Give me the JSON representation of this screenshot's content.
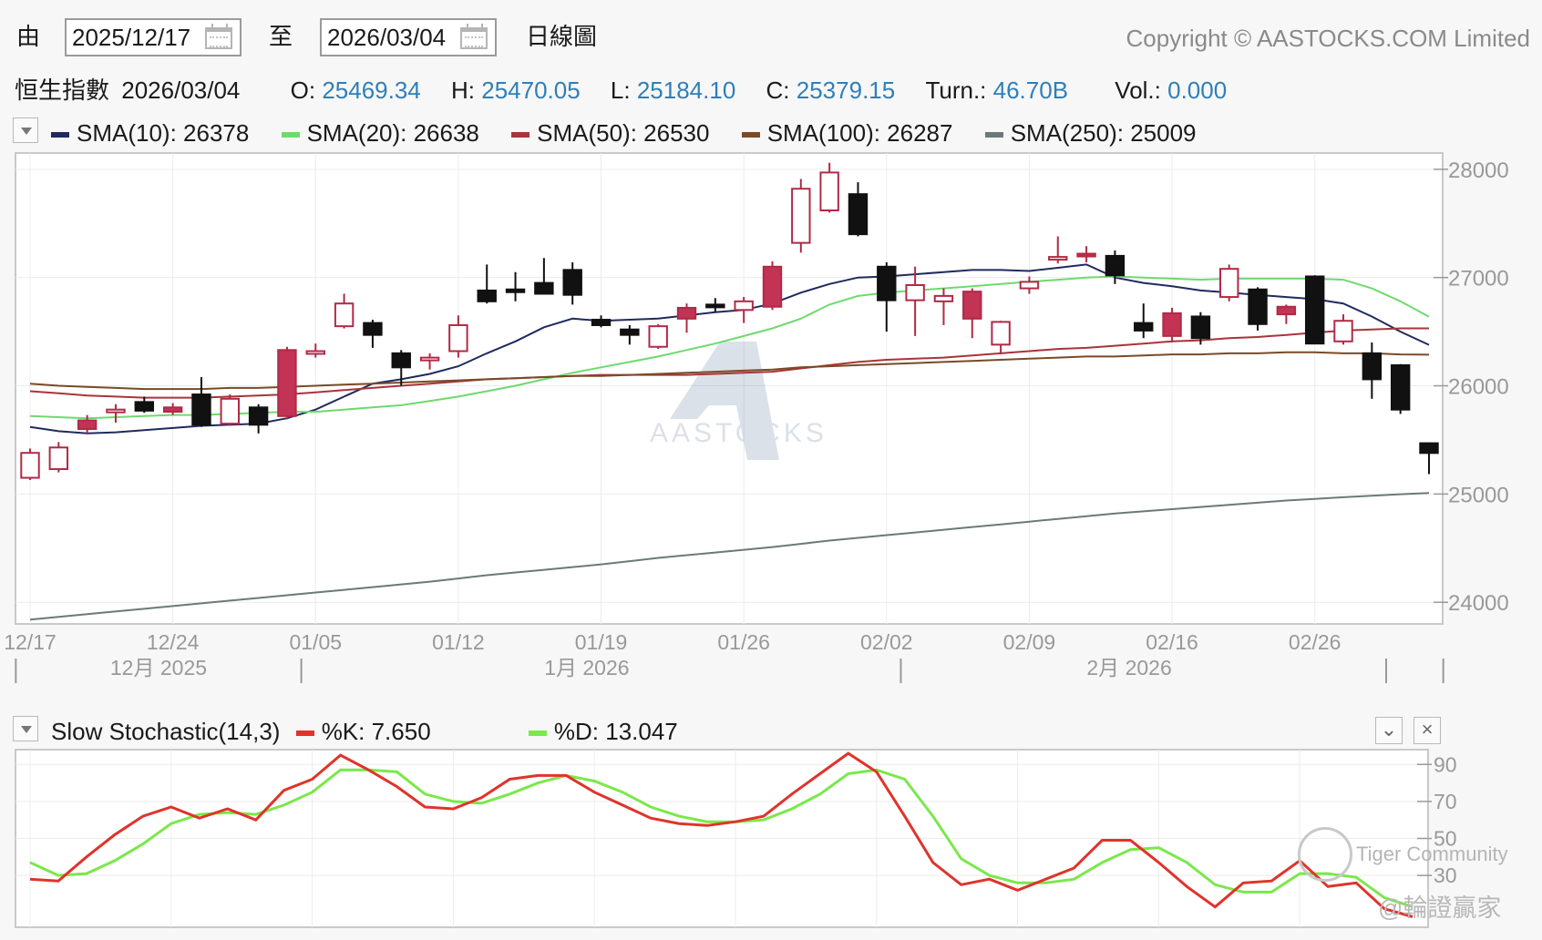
{
  "toolbar": {
    "from_label": "由",
    "from_date": "2025/12/17",
    "to_label": "至",
    "to_date": "2026/03/04",
    "period_label": "日線圖",
    "copyright": "Copyright © AASTOCKS.COM Limited"
  },
  "quote": {
    "name": "恒生指數",
    "date": "2026/03/04",
    "o_label": "O:",
    "o": "25469.34",
    "h_label": "H:",
    "h": "25470.05",
    "l_label": "L:",
    "l": "25184.10",
    "c_label": "C:",
    "c": "25379.15",
    "turn_label": "Turn.:",
    "turn": "46.70B",
    "vol_label": "Vol.:",
    "vol": "0.000"
  },
  "sma_legend": [
    {
      "label": "SMA(10): 26378",
      "color": "#1f2a5e"
    },
    {
      "label": "SMA(20): 26638",
      "color": "#6fd96f"
    },
    {
      "label": "SMA(50): 26530",
      "color": "#a8343b"
    },
    {
      "label": "SMA(100): 26287",
      "color": "#7a4a26"
    },
    {
      "label": "SMA(250): 25009",
      "color": "#6b7a78"
    }
  ],
  "stoch_legend": {
    "title": "Slow Stochastic(14,3)",
    "k_label": "%K: 7.650",
    "k_color": "#e0332b",
    "d_label": "%D: 13.047",
    "d_color": "#7ae84a"
  },
  "watermark": {
    "text": "AASTOCKS"
  },
  "footer_watermark": {
    "community": "Tiger Community",
    "handle": "@輪證贏家"
  },
  "chart_data": [
    {
      "type": "candlestick",
      "title": "恒生指數",
      "ylim": [
        23800,
        28150
      ],
      "yticks": [
        24000,
        25000,
        26000,
        27000,
        28000
      ],
      "x_ticks": [
        {
          "i": 0,
          "label": "12/17"
        },
        {
          "i": 5,
          "label": "12/24"
        },
        {
          "i": 10,
          "label": "01/05"
        },
        {
          "i": 15,
          "label": "01/12"
        },
        {
          "i": 20,
          "label": "01/19"
        },
        {
          "i": 25,
          "label": "01/26"
        },
        {
          "i": 30,
          "label": "02/02"
        },
        {
          "i": 35,
          "label": "02/09"
        },
        {
          "i": 40,
          "label": "02/16"
        },
        {
          "i": 45,
          "label": "02/26"
        }
      ],
      "month_labels": [
        {
          "center": 4.5,
          "label": "12月 2025"
        },
        {
          "center": 19.5,
          "label": "1月 2026"
        },
        {
          "center": 38.5,
          "label": "2月 2026"
        }
      ],
      "month_separators": [
        -0.5,
        9.5,
        30.5,
        47.5,
        49.5
      ],
      "candles": [
        {
          "o": 25150,
          "h": 25420,
          "l": 25130,
          "c": 25380
        },
        {
          "o": 25230,
          "h": 25480,
          "l": 25200,
          "c": 25430
        },
        {
          "o": 25600,
          "h": 25730,
          "l": 25560,
          "c": 25680
        },
        {
          "o": 25770,
          "h": 25830,
          "l": 25660,
          "c": 25780
        },
        {
          "o": 25850,
          "h": 25900,
          "l": 25750,
          "c": 25770
        },
        {
          "o": 25760,
          "h": 25840,
          "l": 25730,
          "c": 25800
        },
        {
          "o": 25920,
          "h": 26080,
          "l": 25620,
          "c": 25640
        },
        {
          "o": 25650,
          "h": 25920,
          "l": 25630,
          "c": 25880
        },
        {
          "o": 25800,
          "h": 25830,
          "l": 25560,
          "c": 25640
        },
        {
          "o": 25720,
          "h": 26360,
          "l": 25690,
          "c": 26330
        },
        {
          "o": 26300,
          "h": 26390,
          "l": 26260,
          "c": 26320
        },
        {
          "o": 26550,
          "h": 26850,
          "l": 26530,
          "c": 26760
        },
        {
          "o": 26580,
          "h": 26610,
          "l": 26350,
          "c": 26470
        },
        {
          "o": 26300,
          "h": 26330,
          "l": 26000,
          "c": 26170
        },
        {
          "o": 26250,
          "h": 26300,
          "l": 26150,
          "c": 26260
        },
        {
          "o": 26320,
          "h": 26650,
          "l": 26260,
          "c": 26560
        },
        {
          "o": 26880,
          "h": 27120,
          "l": 26760,
          "c": 26780
        },
        {
          "o": 26890,
          "h": 27050,
          "l": 26780,
          "c": 26880
        },
        {
          "o": 26950,
          "h": 27180,
          "l": 26850,
          "c": 26850
        },
        {
          "o": 27070,
          "h": 27140,
          "l": 26750,
          "c": 26840
        },
        {
          "o": 26610,
          "h": 26650,
          "l": 26540,
          "c": 26560
        },
        {
          "o": 26520,
          "h": 26560,
          "l": 26380,
          "c": 26470
        },
        {
          "o": 26360,
          "h": 26570,
          "l": 26340,
          "c": 26550
        },
        {
          "o": 26620,
          "h": 26760,
          "l": 26490,
          "c": 26720
        },
        {
          "o": 26750,
          "h": 26810,
          "l": 26680,
          "c": 26730
        },
        {
          "o": 26700,
          "h": 26820,
          "l": 26580,
          "c": 26780
        },
        {
          "o": 26730,
          "h": 27150,
          "l": 26700,
          "c": 27100
        },
        {
          "o": 27320,
          "h": 27910,
          "l": 27230,
          "c": 27820
        },
        {
          "o": 27620,
          "h": 28060,
          "l": 27600,
          "c": 27970
        },
        {
          "o": 27770,
          "h": 27880,
          "l": 27380,
          "c": 27400
        },
        {
          "o": 27100,
          "h": 27140,
          "l": 26500,
          "c": 26790
        },
        {
          "o": 26790,
          "h": 27100,
          "l": 26460,
          "c": 26930
        },
        {
          "o": 26780,
          "h": 26900,
          "l": 26560,
          "c": 26830
        },
        {
          "o": 26620,
          "h": 26900,
          "l": 26440,
          "c": 26870
        },
        {
          "o": 26380,
          "h": 26600,
          "l": 26290,
          "c": 26590
        },
        {
          "o": 26900,
          "h": 27010,
          "l": 26850,
          "c": 26960
        },
        {
          "o": 27170,
          "h": 27380,
          "l": 27130,
          "c": 27190
        },
        {
          "o": 27220,
          "h": 27290,
          "l": 27140,
          "c": 27220
        },
        {
          "o": 27200,
          "h": 27250,
          "l": 26940,
          "c": 27020
        },
        {
          "o": 26580,
          "h": 26760,
          "l": 26440,
          "c": 26510
        },
        {
          "o": 26460,
          "h": 26720,
          "l": 26400,
          "c": 26670
        },
        {
          "o": 26640,
          "h": 26680,
          "l": 26380,
          "c": 26440
        },
        {
          "o": 26820,
          "h": 27120,
          "l": 26780,
          "c": 27080
        },
        {
          "o": 26890,
          "h": 26910,
          "l": 26510,
          "c": 26570
        },
        {
          "o": 26660,
          "h": 26750,
          "l": 26570,
          "c": 26730
        },
        {
          "o": 27010,
          "h": 27020,
          "l": 26400,
          "c": 26390
        },
        {
          "o": 26410,
          "h": 26660,
          "l": 26380,
          "c": 26600
        },
        {
          "o": 26300,
          "h": 26400,
          "l": 25880,
          "c": 26060
        },
        {
          "o": 26190,
          "h": 26200,
          "l": 25740,
          "c": 25780
        },
        {
          "o": 25469.34,
          "h": 25470.05,
          "l": 25184.1,
          "c": 25379.15
        }
      ],
      "series": [
        {
          "name": "SMA(10)",
          "color": "#1f2a5e",
          "values": [
            25620,
            25580,
            25560,
            25570,
            25590,
            25610,
            25630,
            25640,
            25650,
            25700,
            25780,
            25900,
            26020,
            26060,
            26110,
            26180,
            26300,
            26410,
            26540,
            26620,
            26600,
            26610,
            26620,
            26650,
            26680,
            26700,
            26760,
            26860,
            26940,
            27000,
            27010,
            27030,
            27050,
            27070,
            27070,
            27060,
            27090,
            27120,
            27000,
            26950,
            26920,
            26880,
            26860,
            26840,
            26820,
            26800,
            26760,
            26640,
            26500,
            26378
          ]
        },
        {
          "name": "SMA(20)",
          "color": "#6fd96f",
          "values": [
            25720,
            25710,
            25700,
            25710,
            25720,
            25730,
            25730,
            25740,
            25750,
            25760,
            25760,
            25780,
            25800,
            25820,
            25860,
            25900,
            25950,
            26000,
            26060,
            26120,
            26170,
            26220,
            26270,
            26330,
            26390,
            26460,
            26530,
            26620,
            26750,
            26830,
            26860,
            26880,
            26900,
            26920,
            26940,
            26960,
            26980,
            27000,
            27010,
            27000,
            26990,
            26980,
            26990,
            26990,
            26990,
            26990,
            26980,
            26900,
            26780,
            26638
          ]
        },
        {
          "name": "SMA(50)",
          "color": "#a8343b",
          "values": [
            25950,
            25930,
            25910,
            25900,
            25890,
            25890,
            25890,
            25900,
            25910,
            25920,
            25940,
            25960,
            25980,
            26000,
            26020,
            26040,
            26060,
            26070,
            26080,
            26090,
            26100,
            26100,
            26100,
            26100,
            26110,
            26120,
            26130,
            26160,
            26190,
            26220,
            26240,
            26250,
            26260,
            26280,
            26300,
            26320,
            26340,
            26350,
            26370,
            26390,
            26410,
            26420,
            26440,
            26450,
            26470,
            26490,
            26510,
            26520,
            26530,
            26530
          ]
        },
        {
          "name": "SMA(100)",
          "color": "#7a4a26",
          "values": [
            26020,
            26000,
            25990,
            25980,
            25970,
            25970,
            25970,
            25980,
            25980,
            25990,
            26000,
            26010,
            26020,
            26030,
            26040,
            26050,
            26060,
            26070,
            26080,
            26090,
            26090,
            26100,
            26110,
            26120,
            26130,
            26140,
            26150,
            26170,
            26180,
            26190,
            26200,
            26210,
            26220,
            26230,
            26240,
            26250,
            26260,
            26270,
            26270,
            26280,
            26290,
            26290,
            26300,
            26300,
            26310,
            26310,
            26300,
            26300,
            26290,
            26287
          ]
        },
        {
          "name": "SMA(250)",
          "color": "#6b7a78",
          "values": [
            23840,
            23865,
            23890,
            23915,
            23940,
            23965,
            23990,
            24015,
            24040,
            24065,
            24090,
            24115,
            24140,
            24165,
            24190,
            24220,
            24250,
            24275,
            24300,
            24325,
            24350,
            24380,
            24410,
            24435,
            24460,
            24485,
            24510,
            24540,
            24570,
            24595,
            24620,
            24645,
            24670,
            24695,
            24720,
            24745,
            24770,
            24795,
            24820,
            24840,
            24860,
            24880,
            24900,
            24920,
            24940,
            24955,
            24970,
            24985,
            24998,
            25009
          ]
        }
      ]
    },
    {
      "type": "line",
      "title": "Slow Stochastic(14,3)",
      "ylim": [
        2,
        98
      ],
      "yticks": [
        90,
        70,
        50,
        30
      ],
      "series": [
        {
          "name": "%K",
          "color": "#e0332b",
          "values": [
            28,
            27,
            40,
            52,
            62,
            67,
            61,
            66,
            60,
            76,
            82,
            95,
            87,
            78,
            67,
            66,
            72,
            82,
            84,
            84,
            75,
            68,
            61,
            58,
            57,
            59,
            62,
            74,
            85,
            96,
            86,
            62,
            37,
            25,
            28,
            22,
            28,
            34,
            49,
            49,
            37,
            24,
            13,
            26,
            27,
            38,
            24,
            26,
            12,
            7.65
          ]
        },
        {
          "name": "%D",
          "color": "#7ae84a",
          "values": [
            37,
            30,
            31,
            38,
            47,
            58,
            63,
            64,
            63,
            68,
            75,
            87,
            87,
            86,
            74,
            70,
            69,
            74,
            80,
            84,
            81,
            75,
            67,
            62,
            59,
            59,
            60,
            66,
            74,
            85,
            87,
            82,
            62,
            39,
            30,
            26,
            26,
            28,
            37,
            44,
            45,
            37,
            25,
            21,
            21,
            31,
            31,
            29,
            18,
            13.047
          ]
        }
      ]
    }
  ]
}
